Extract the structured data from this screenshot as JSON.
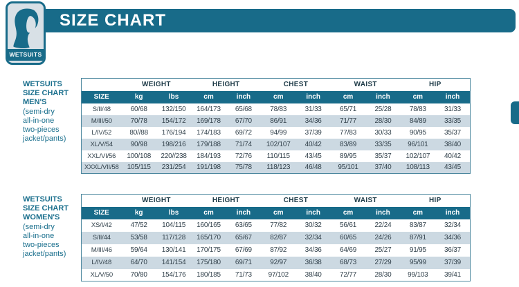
{
  "header": {
    "title": "SIZE CHART",
    "logo_text": "WETSUITS"
  },
  "colors": {
    "teal": "#186b89",
    "row_alt": "#ccd9e2",
    "table_border": "#4b879e",
    "logo_bg": "#d8e0e6",
    "data_text": "#33424c",
    "caption_text": "#1a6f8d"
  },
  "chart_data": [
    {
      "type": "table",
      "title": "WETSUITS SIZE CHART MEN'S",
      "caption_bold": [
        "WETSUITS",
        "SIZE CHART",
        "MEN'S"
      ],
      "caption_regular": [
        "(semi-dry",
        "all-in-one",
        "two-pieces",
        "jacket/pants)"
      ],
      "group_headers": [
        "WEIGHT",
        "HEIGHT",
        "CHEST",
        "WAIST",
        "HIP"
      ],
      "col_headers": [
        "SIZE",
        "kg",
        "lbs",
        "cm",
        "inch",
        "cm",
        "inch",
        "cm",
        "inch",
        "cm",
        "inch"
      ],
      "rows": [
        [
          "S/II/48",
          "60/68",
          "132/150",
          "164/173",
          "65/68",
          "78/83",
          "31/33",
          "65/71",
          "25/28",
          "78/83",
          "31/33"
        ],
        [
          "M/III/50",
          "70/78",
          "154/172",
          "169/178",
          "67/70",
          "86/91",
          "34/36",
          "71/77",
          "28/30",
          "84/89",
          "33/35"
        ],
        [
          "L/IV/52",
          "80//88",
          "176/194",
          "174/183",
          "69/72",
          "94/99",
          "37/39",
          "77/83",
          "30/33",
          "90/95",
          "35/37"
        ],
        [
          "XL/V/54",
          "90/98",
          "198/216",
          "179/188",
          "71/74",
          "102/107",
          "40/42",
          "83/89",
          "33/35",
          "96/101",
          "38/40"
        ],
        [
          "XXL/VI/56",
          "100/108",
          "220//238",
          "184/193",
          "72/76",
          "110/115",
          "43/45",
          "89/95",
          "35/37",
          "102/107",
          "40/42"
        ],
        [
          "XXXL/VII/58",
          "105/115",
          "231/254",
          "191/198",
          "75/78",
          "118/123",
          "46/48",
          "95/101",
          "37/40",
          "108/113",
          "43/45"
        ]
      ]
    },
    {
      "type": "table",
      "title": "WETSUITS SIZE CHART WOMEN'S",
      "caption_bold": [
        "WETSUITS",
        "SIZE CHART",
        "WOMEN'S"
      ],
      "caption_regular": [
        "(semi-dry",
        "all-in-one",
        "two-pieces",
        "jacket/pants)"
      ],
      "group_headers": [
        "WEIGHT",
        "HEIGHT",
        "CHEST",
        "WAIST",
        "HIP"
      ],
      "col_headers": [
        "SIZE",
        "kg",
        "lbs",
        "cm",
        "inch",
        "cm",
        "inch",
        "cm",
        "inch",
        "cm",
        "inch"
      ],
      "rows": [
        [
          "XS/I/42",
          "47/52",
          "104/115",
          "160/165",
          "63/65",
          "77/82",
          "30/32",
          "56/61",
          "22/24",
          "83/87",
          "32/34"
        ],
        [
          "S/II/44",
          "53/58",
          "117/128",
          "165/170",
          "65/67",
          "82/87",
          "32/34",
          "60/65",
          "24/26",
          "87/91",
          "34/36"
        ],
        [
          "M/III/46",
          "59/64",
          "130/141",
          "170/175",
          "67/69",
          "87/92",
          "34/36",
          "64/69",
          "25/27",
          "91/95",
          "36/37"
        ],
        [
          "L/IV/48",
          "64/70",
          "141/154",
          "175/180",
          "69/71",
          "92/97",
          "36/38",
          "68/73",
          "27/29",
          "95/99",
          "37/39"
        ],
        [
          "XL/V/50",
          "70/80",
          "154/176",
          "180/185",
          "71/73",
          "97/102",
          "38/40",
          "72/77",
          "28/30",
          "99/103",
          "39/41"
        ]
      ]
    }
  ]
}
